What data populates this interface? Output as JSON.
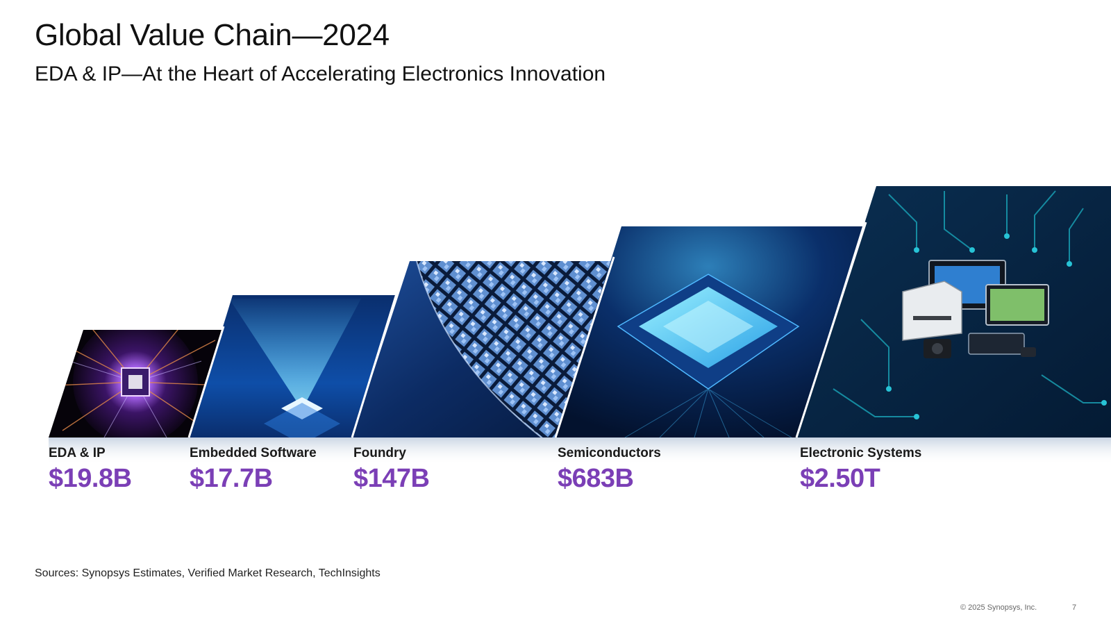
{
  "slide": {
    "title": "Global Value Chain—2024",
    "subtitle": "EDA & IP—At the Heart of Accelerating Electronics Innovation"
  },
  "segments": [
    {
      "label": "EDA & IP",
      "value": "$19.8B"
    },
    {
      "label": "Embedded Software",
      "value": "$17.7B"
    },
    {
      "label": "Foundry",
      "value": "$147B"
    },
    {
      "label": "Semiconductors",
      "value": "$683B"
    },
    {
      "label": "Electronic Systems",
      "value": "$2.50T"
    }
  ],
  "footer": {
    "sources": "Sources: Synopsys Estimates, Verified Market Research, TechInsights",
    "copyright": "© 2025 Synopsys, Inc.",
    "page_number": "7"
  },
  "colors": {
    "value_text": "#7b3fb6",
    "panel_dark": "#041634",
    "panel_blue": "#0d4f9c",
    "circuit_teal": "#1aa5b8"
  }
}
